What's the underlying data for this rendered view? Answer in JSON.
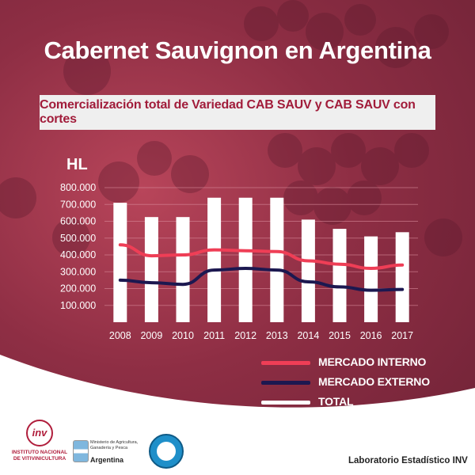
{
  "header": {
    "title": "Cabernet Sauvignon en Argentina",
    "subtitle": "Comercialización total de Variedad CAB SAUV y CAB SAUV con cortes",
    "unit": "HL"
  },
  "legend": {
    "items": [
      {
        "label": "MERCADO INTERNO",
        "color": "#ef3e56"
      },
      {
        "label": "MERCADO EXTERNO",
        "color": "#1c1850"
      },
      {
        "label": "TOTAL",
        "color": "#ffffff"
      }
    ]
  },
  "footer": {
    "inv_text": "INSTITUTO NACIONAL DE VITIVINICULTURA",
    "inv_logo": "inv",
    "ministry_text": "Ministerio de Agricultura, Ganadería y Pesca",
    "ministry_country": "Argentina",
    "lab_text": "Laboratorio Estadístico INV"
  },
  "chart_data": {
    "type": "bar",
    "categories": [
      "2008",
      "2009",
      "2010",
      "2011",
      "2012",
      "2013",
      "2014",
      "2015",
      "2016",
      "2017"
    ],
    "y_ticks": [
      "100.000",
      "200.000",
      "300.000",
      "400.000",
      "500.000",
      "600.000",
      "700.000",
      "800.000"
    ],
    "ylim": [
      0,
      800000
    ],
    "ylabel": "HL",
    "grid": true,
    "legend_position": "bottom-right",
    "series": [
      {
        "name": "TOTAL",
        "type": "bar",
        "color": "#ffffff",
        "values": [
          710000,
          625000,
          625000,
          740000,
          740000,
          740000,
          610000,
          555000,
          510000,
          535000
        ]
      },
      {
        "name": "MERCADO INTERNO",
        "type": "line",
        "color": "#ef3e56",
        "values": [
          460000,
          395000,
          400000,
          430000,
          425000,
          420000,
          365000,
          345000,
          320000,
          340000
        ]
      },
      {
        "name": "MERCADO EXTERNO",
        "type": "line",
        "color": "#1c1850",
        "values": [
          250000,
          235000,
          225000,
          310000,
          320000,
          310000,
          240000,
          210000,
          190000,
          195000
        ]
      }
    ]
  }
}
